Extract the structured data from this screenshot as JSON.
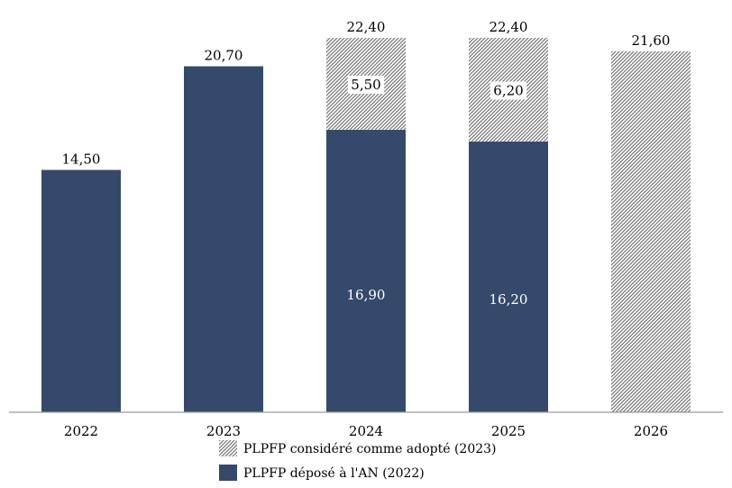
{
  "chart_data": {
    "type": "bar",
    "stacked": true,
    "categories": [
      "2022",
      "2023",
      "2024",
      "2025",
      "2026"
    ],
    "series": [
      {
        "name": "PLPFP déposé à l'AN (2022)",
        "values": [
          14.5,
          20.7,
          16.9,
          16.2,
          null
        ],
        "labels": [
          "14,50",
          "20,70",
          "16,90",
          "16,20",
          ""
        ],
        "color": "#354a6a",
        "pattern": "solid"
      },
      {
        "name": "PLPFP considéré comme adopté (2023)",
        "values": [
          null,
          null,
          5.5,
          6.2,
          21.6
        ],
        "labels": [
          "",
          "",
          "5,50",
          "6,20",
          ""
        ],
        "color": "#888888",
        "pattern": "hatched"
      }
    ],
    "totals": {
      "values": [
        null,
        null,
        22.4,
        22.4,
        21.6
      ],
      "labels": [
        "",
        "",
        "22,40",
        "22,40",
        "21,60"
      ]
    },
    "ylim": [
      0,
      22.4
    ],
    "grid": false,
    "legend_position": "bottom"
  }
}
